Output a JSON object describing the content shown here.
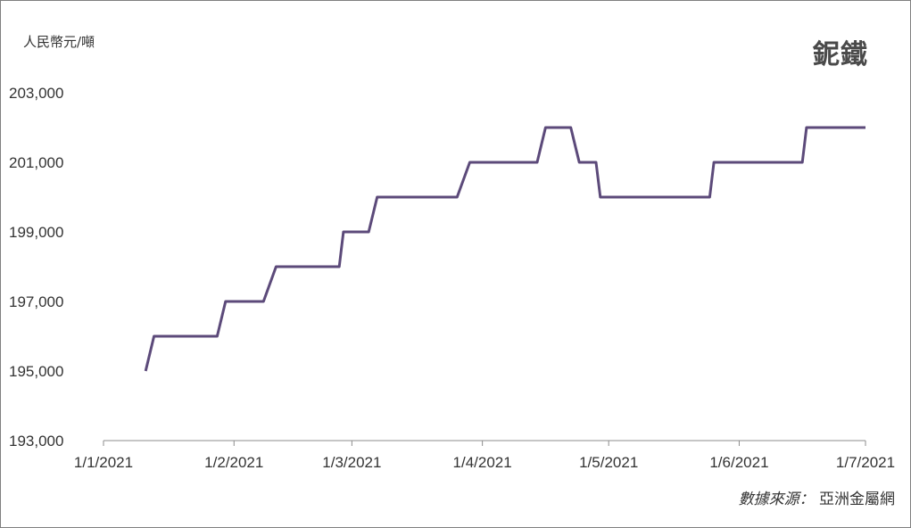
{
  "chart_data": {
    "type": "line",
    "title": "鈮鐵",
    "ylabel": "人民幣元/噸",
    "xlabel": "",
    "ylim": [
      193000,
      203000
    ],
    "y_ticks": [
      "193,000",
      "195,000",
      "197,000",
      "199,000",
      "201,000",
      "203,000"
    ],
    "x_ticks": [
      "1/1/2021",
      "1/2/2021",
      "1/3/2021",
      "1/4/2021",
      "1/5/2021",
      "1/6/2021",
      "1/7/2021"
    ],
    "grid": false,
    "line_color": "#5c4a7a",
    "series": [
      {
        "x": [
          "2021-01-11",
          "2021-01-13",
          "2021-01-28",
          "2021-01-30",
          "2021-02-08",
          "2021-02-11",
          "2021-02-26",
          "2021-02-27",
          "2021-03-05",
          "2021-03-07",
          "2021-03-26",
          "2021-03-29",
          "2021-04-14",
          "2021-04-16",
          "2021-04-22",
          "2021-04-24",
          "2021-04-28",
          "2021-04-29",
          "2021-05-25",
          "2021-05-26",
          "2021-06-16",
          "2021-06-17",
          "2021-07-01"
        ],
        "y": [
          195000,
          196000,
          196000,
          197000,
          197000,
          198000,
          198000,
          199000,
          199000,
          200000,
          200000,
          201000,
          201000,
          202000,
          202000,
          201000,
          201000,
          200000,
          200000,
          201000,
          201000,
          202000,
          202000
        ]
      }
    ]
  },
  "source": {
    "label": "數據來源：",
    "value": "亞洲金屬網"
  }
}
